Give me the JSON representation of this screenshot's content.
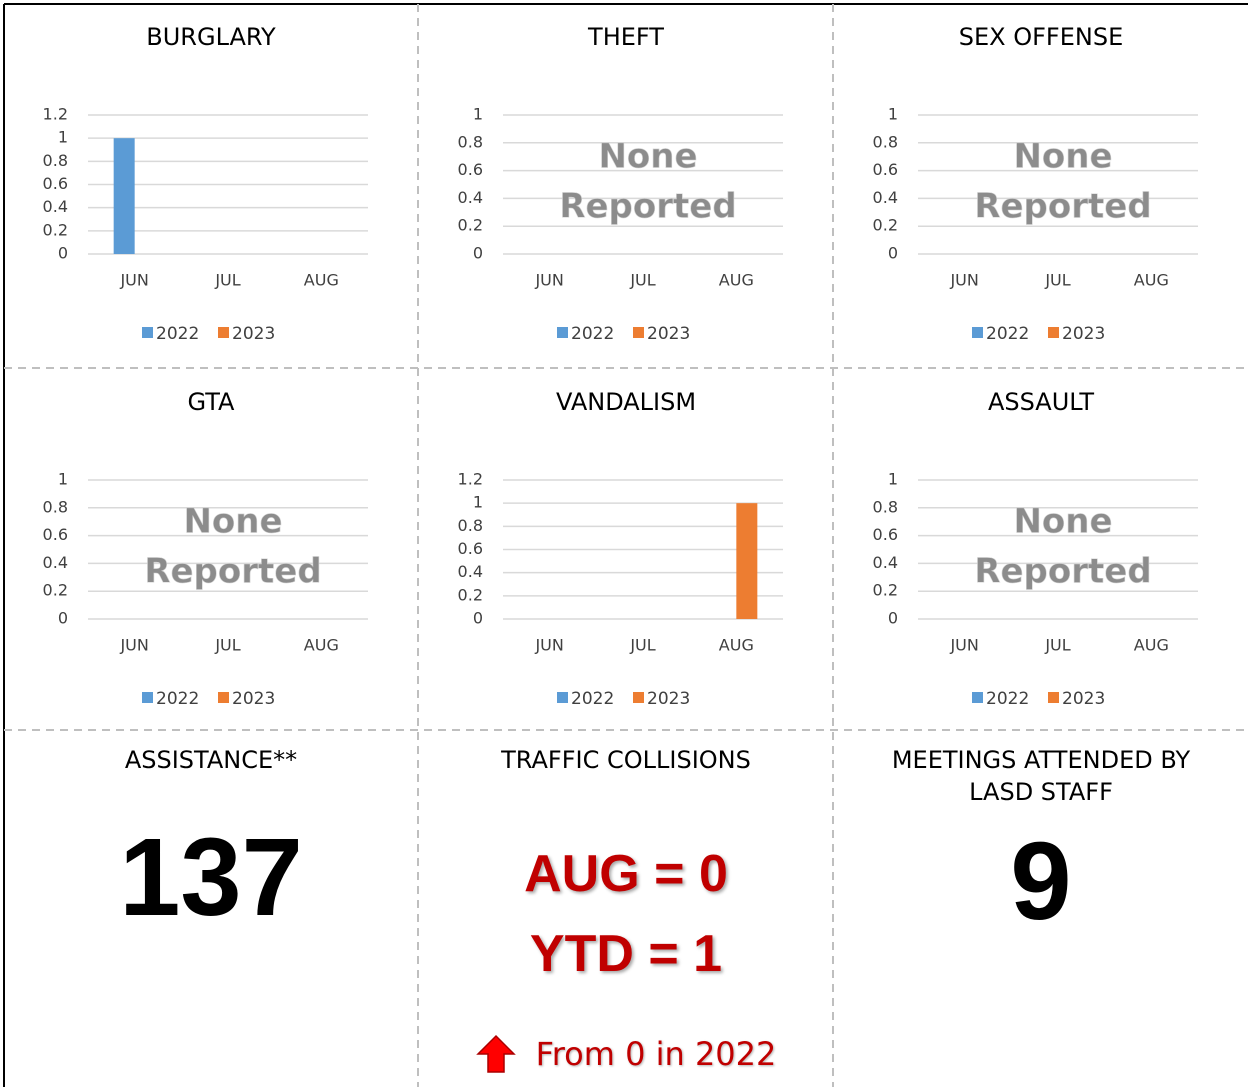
{
  "chart_data": [
    {
      "type": "bar",
      "title": "BURGLARY",
      "categories": [
        "JUN",
        "JUL",
        "AUG"
      ],
      "series": [
        {
          "name": "2022",
          "color": "#5b9bd5",
          "values": [
            1,
            0,
            0
          ]
        },
        {
          "name": "2023",
          "color": "#ed7d31",
          "values": [
            0,
            0,
            0
          ]
        }
      ],
      "ylim": [
        0,
        1.2
      ],
      "yticks": [
        0,
        0.2,
        0.4,
        0.6,
        0.8,
        1,
        1.2
      ],
      "grid": true,
      "legend": "bottom"
    },
    {
      "type": "bar",
      "title": "THEFT",
      "categories": [
        "JUN",
        "JUL",
        "AUG"
      ],
      "series": [
        {
          "name": "2022",
          "color": "#5b9bd5",
          "values": [
            0,
            0,
            0
          ]
        },
        {
          "name": "2023",
          "color": "#ed7d31",
          "values": [
            0,
            0,
            0
          ]
        }
      ],
      "ylim": [
        0,
        1
      ],
      "yticks": [
        0,
        0.2,
        0.4,
        0.6,
        0.8,
        1
      ],
      "grid": true,
      "legend": "bottom",
      "annotation": [
        "None",
        "Reported"
      ]
    },
    {
      "type": "bar",
      "title": "SEX OFFENSE",
      "categories": [
        "JUN",
        "JUL",
        "AUG"
      ],
      "series": [
        {
          "name": "2022",
          "color": "#5b9bd5",
          "values": [
            0,
            0,
            0
          ]
        },
        {
          "name": "2023",
          "color": "#ed7d31",
          "values": [
            0,
            0,
            0
          ]
        }
      ],
      "ylim": [
        0,
        1
      ],
      "yticks": [
        0,
        0.2,
        0.4,
        0.6,
        0.8,
        1
      ],
      "grid": true,
      "legend": "bottom",
      "annotation": [
        "None",
        "Reported"
      ]
    },
    {
      "type": "bar",
      "title": "GTA",
      "categories": [
        "JUN",
        "JUL",
        "AUG"
      ],
      "series": [
        {
          "name": "2022",
          "color": "#5b9bd5",
          "values": [
            0,
            0,
            0
          ]
        },
        {
          "name": "2023",
          "color": "#ed7d31",
          "values": [
            0,
            0,
            0
          ]
        }
      ],
      "ylim": [
        0,
        1
      ],
      "yticks": [
        0,
        0.2,
        0.4,
        0.6,
        0.8,
        1
      ],
      "grid": true,
      "legend": "bottom",
      "annotation": [
        "None",
        "Reported"
      ]
    },
    {
      "type": "bar",
      "title": "VANDALISM",
      "categories": [
        "JUN",
        "JUL",
        "AUG"
      ],
      "series": [
        {
          "name": "2022",
          "color": "#5b9bd5",
          "values": [
            0,
            0,
            0
          ]
        },
        {
          "name": "2023",
          "color": "#ed7d31",
          "values": [
            0,
            0,
            1
          ]
        }
      ],
      "ylim": [
        0,
        1.2
      ],
      "yticks": [
        0,
        0.2,
        0.4,
        0.6,
        0.8,
        1,
        1.2
      ],
      "grid": true,
      "legend": "bottom"
    },
    {
      "type": "bar",
      "title": "ASSAULT",
      "categories": [
        "JUN",
        "JUL",
        "AUG"
      ],
      "series": [
        {
          "name": "2022",
          "color": "#5b9bd5",
          "values": [
            0,
            0,
            0
          ]
        },
        {
          "name": "2023",
          "color": "#ed7d31",
          "values": [
            0,
            0,
            0
          ]
        }
      ],
      "ylim": [
        0,
        1
      ],
      "yticks": [
        0,
        0.2,
        0.4,
        0.6,
        0.8,
        1
      ],
      "grid": true,
      "legend": "bottom",
      "annotation": [
        "None",
        "Reported"
      ]
    }
  ],
  "stats": {
    "assistance": {
      "title": "ASSISTANCE**",
      "value": 137
    },
    "traffic": {
      "title": "TRAFFIC COLLISIONS",
      "lines": [
        "AUG = 0",
        "YTD = 1"
      ],
      "note": "From 0 in 2022"
    },
    "meetings": {
      "title": "MEETINGS ATTENDED BY LASD STAFF",
      "value": 9
    }
  }
}
